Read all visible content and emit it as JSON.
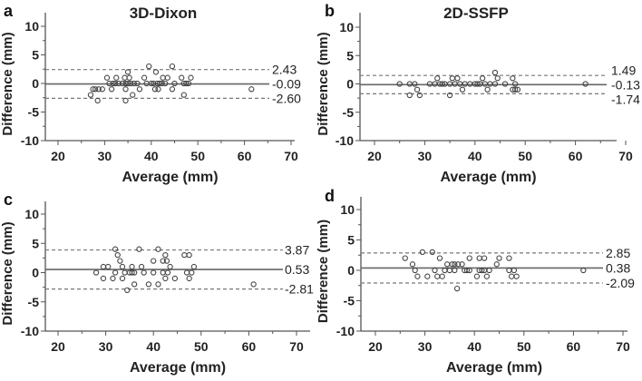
{
  "chart_data": [
    {
      "type": "scatter",
      "panel": "a",
      "title": "3D-Dixon",
      "xlabel": "Average (mm)",
      "ylabel": "Difference (mm)",
      "xlim": [
        17,
        72
      ],
      "ylim": [
        -10,
        12
      ],
      "xticks": [
        20,
        30,
        40,
        50,
        60,
        70
      ],
      "yticks": [
        10,
        5,
        0,
        -5,
        -10
      ],
      "mean_bias": -0.09,
      "upper_loa": 2.43,
      "lower_loa": -2.6,
      "line_labels": [
        "2.43",
        "-0.09",
        "-2.60"
      ],
      "points": [
        [
          27,
          -2
        ],
        [
          27.5,
          -1
        ],
        [
          28,
          -1
        ],
        [
          28.5,
          -3
        ],
        [
          28.7,
          -1
        ],
        [
          29.5,
          -1
        ],
        [
          30.5,
          1
        ],
        [
          31,
          0
        ],
        [
          31.5,
          -1
        ],
        [
          31.8,
          0
        ],
        [
          32.3,
          0
        ],
        [
          32.5,
          1
        ],
        [
          33,
          0
        ],
        [
          33.8,
          0
        ],
        [
          34.3,
          1
        ],
        [
          34.5,
          0
        ],
        [
          34.5,
          -1
        ],
        [
          34.5,
          -3
        ],
        [
          35,
          2
        ],
        [
          35,
          0
        ],
        [
          35.3,
          1
        ],
        [
          35.6,
          0
        ],
        [
          36,
          -2
        ],
        [
          36.3,
          0
        ],
        [
          37,
          0
        ],
        [
          37.5,
          -1
        ],
        [
          38.5,
          1
        ],
        [
          39,
          0
        ],
        [
          39.5,
          3
        ],
        [
          40,
          0
        ],
        [
          40.5,
          0
        ],
        [
          40.8,
          -1
        ],
        [
          41,
          2
        ],
        [
          41.3,
          0
        ],
        [
          41.5,
          -1
        ],
        [
          41.8,
          0
        ],
        [
          42.3,
          0
        ],
        [
          42.5,
          1
        ],
        [
          43,
          0
        ],
        [
          43.5,
          1
        ],
        [
          44.5,
          3
        ],
        [
          44.5,
          -1
        ],
        [
          45,
          0
        ],
        [
          46.5,
          1
        ],
        [
          47,
          0
        ],
        [
          47,
          -2
        ],
        [
          47.5,
          0
        ],
        [
          48,
          0
        ],
        [
          48.5,
          1
        ],
        [
          61.5,
          -1
        ]
      ]
    },
    {
      "type": "scatter",
      "panel": "b",
      "title": "2D-SSFP",
      "xlabel": "Average (mm)",
      "ylabel": "Difference (mm)",
      "xlim": [
        17,
        72
      ],
      "ylim": [
        -10,
        12
      ],
      "xticks": [
        20,
        30,
        40,
        50,
        60,
        70
      ],
      "yticks": [
        10,
        5,
        0,
        -5,
        -10
      ],
      "mean_bias": -0.13,
      "upper_loa": 1.49,
      "lower_loa": -1.74,
      "line_labels": [
        "1.49",
        "-0.13",
        "-1.74"
      ],
      "points": [
        [
          25,
          0
        ],
        [
          27,
          0
        ],
        [
          27,
          -2
        ],
        [
          28,
          0
        ],
        [
          28.5,
          -1
        ],
        [
          29,
          -2
        ],
        [
          31,
          0
        ],
        [
          32,
          0
        ],
        [
          32.5,
          1
        ],
        [
          33,
          0
        ],
        [
          33.5,
          0
        ],
        [
          34,
          0
        ],
        [
          35,
          0
        ],
        [
          35,
          -2
        ],
        [
          35.5,
          1
        ],
        [
          36,
          0
        ],
        [
          36.5,
          1
        ],
        [
          37,
          0
        ],
        [
          37.5,
          -1
        ],
        [
          38,
          0
        ],
        [
          39,
          0
        ],
        [
          40,
          0
        ],
        [
          40.5,
          0
        ],
        [
          41,
          0
        ],
        [
          41.5,
          1
        ],
        [
          42,
          0
        ],
        [
          42.5,
          -1
        ],
        [
          43,
          0
        ],
        [
          44,
          2
        ],
        [
          44.5,
          1
        ],
        [
          44,
          0
        ],
        [
          46,
          0
        ],
        [
          47.5,
          1
        ],
        [
          47.5,
          -1
        ],
        [
          48,
          0
        ],
        [
          48,
          -1
        ],
        [
          48.5,
          -1
        ],
        [
          62,
          0
        ]
      ]
    },
    {
      "type": "scatter",
      "panel": "c",
      "title": "",
      "xlabel": "Average (mm)",
      "ylabel": "Difference (mm)",
      "xlim": [
        17,
        72
      ],
      "ylim": [
        -10,
        12
      ],
      "xticks": [
        20,
        30,
        40,
        50,
        60,
        70
      ],
      "yticks": [
        10,
        5,
        0,
        -5,
        -10
      ],
      "mean_bias": 0.53,
      "upper_loa": 3.87,
      "lower_loa": -2.81,
      "line_labels": [
        "3.87",
        "0.53",
        "-2.81"
      ],
      "points": [
        [
          28,
          0
        ],
        [
          29.5,
          1
        ],
        [
          29.5,
          -1
        ],
        [
          30.5,
          1
        ],
        [
          31.5,
          -1
        ],
        [
          32,
          4
        ],
        [
          32,
          0
        ],
        [
          32.5,
          3
        ],
        [
          33,
          2
        ],
        [
          33.5,
          1
        ],
        [
          33.5,
          -1
        ],
        [
          34,
          0
        ],
        [
          34.5,
          -3
        ],
        [
          35,
          0
        ],
        [
          35.5,
          1
        ],
        [
          35.5,
          0
        ],
        [
          36,
          0
        ],
        [
          36,
          -2
        ],
        [
          37,
          4
        ],
        [
          37.5,
          1
        ],
        [
          38,
          0
        ],
        [
          39,
          -2
        ],
        [
          40,
          2
        ],
        [
          40,
          0
        ],
        [
          41,
          4
        ],
        [
          41,
          -2
        ],
        [
          42,
          2
        ],
        [
          42,
          0
        ],
        [
          42.5,
          3
        ],
        [
          42.5,
          -1
        ],
        [
          42.8,
          2
        ],
        [
          43,
          0
        ],
        [
          43.5,
          1
        ],
        [
          44.5,
          -1
        ],
        [
          46.5,
          3
        ],
        [
          47,
          0
        ],
        [
          47.5,
          3
        ],
        [
          47.5,
          -1
        ],
        [
          48,
          0
        ],
        [
          48.5,
          1
        ],
        [
          61,
          -2
        ]
      ]
    },
    {
      "type": "scatter",
      "panel": "d",
      "title": "",
      "xlabel": "Average (mm)",
      "ylabel": "Difference (mm)",
      "xlim": [
        17,
        72
      ],
      "ylim": [
        -10,
        12
      ],
      "xticks": [
        20,
        30,
        40,
        50,
        60,
        70
      ],
      "yticks": [
        10,
        5,
        0,
        -5,
        -10
      ],
      "mean_bias": 0.38,
      "upper_loa": 2.85,
      "lower_loa": -2.09,
      "line_labels": [
        "2.85",
        "0.38",
        "-2.09"
      ],
      "points": [
        [
          26,
          2
        ],
        [
          27.5,
          1
        ],
        [
          28,
          0
        ],
        [
          28.5,
          -1
        ],
        [
          29.5,
          3
        ],
        [
          30.5,
          -1
        ],
        [
          31.5,
          3
        ],
        [
          32,
          0
        ],
        [
          32.5,
          -1
        ],
        [
          33,
          2
        ],
        [
          33.5,
          -1
        ],
        [
          34,
          0
        ],
        [
          34.5,
          1
        ],
        [
          35,
          0
        ],
        [
          35.5,
          1
        ],
        [
          36,
          0
        ],
        [
          36,
          1
        ],
        [
          36.5,
          -3
        ],
        [
          36.7,
          1
        ],
        [
          37.5,
          1
        ],
        [
          38,
          0
        ],
        [
          38.5,
          0
        ],
        [
          39,
          2
        ],
        [
          39,
          0
        ],
        [
          40.5,
          -1
        ],
        [
          41,
          2
        ],
        [
          41,
          0
        ],
        [
          41.5,
          0
        ],
        [
          42,
          2
        ],
        [
          42,
          0
        ],
        [
          42.5,
          -1
        ],
        [
          43,
          0
        ],
        [
          44.5,
          1
        ],
        [
          45,
          2
        ],
        [
          47,
          2
        ],
        [
          47,
          0
        ],
        [
          47.5,
          -1
        ],
        [
          48,
          0
        ],
        [
          48.5,
          -1
        ],
        [
          62,
          0
        ]
      ]
    }
  ]
}
